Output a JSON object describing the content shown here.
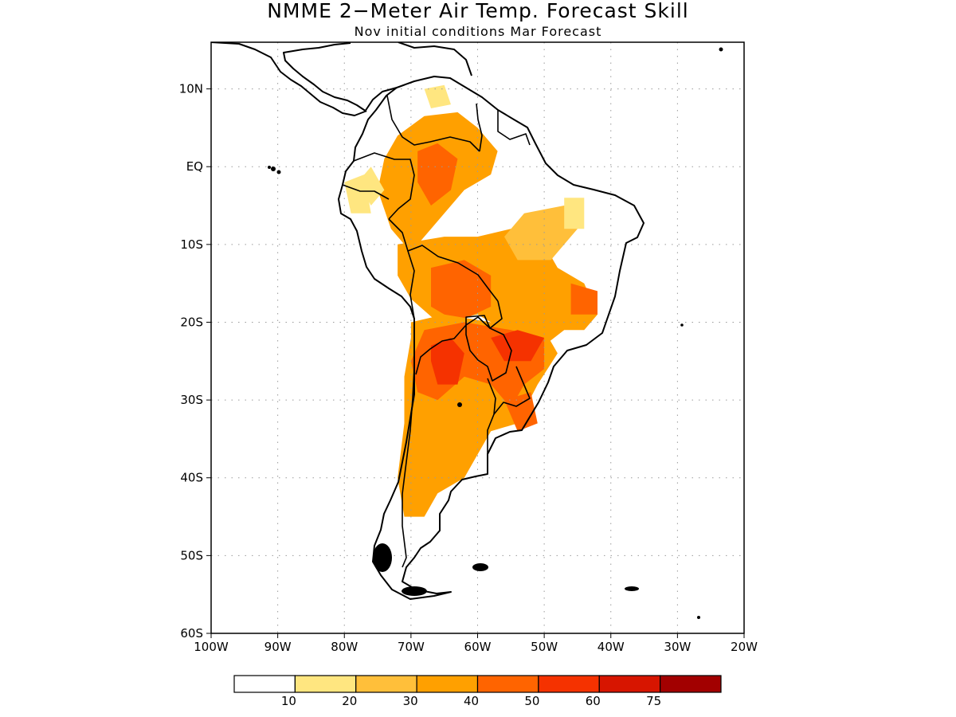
{
  "title": "NMME 2−Meter Air Temp. Forecast Skill",
  "subtitle": "Nov initial conditions  Mar Forecast",
  "map": {
    "lon_range": [
      -100,
      -20
    ],
    "lat_range": [
      -60,
      16
    ],
    "lon_ticks": [
      {
        "value": -100,
        "label": "100W"
      },
      {
        "value": -90,
        "label": "90W"
      },
      {
        "value": -80,
        "label": "80W"
      },
      {
        "value": -70,
        "label": "70W"
      },
      {
        "value": -60,
        "label": "60W"
      },
      {
        "value": -50,
        "label": "50W"
      },
      {
        "value": -40,
        "label": "40W"
      },
      {
        "value": -30,
        "label": "30W"
      },
      {
        "value": -20,
        "label": "20W"
      }
    ],
    "lat_ticks": [
      {
        "value": 10,
        "label": "10N"
      },
      {
        "value": 0,
        "label": "EQ"
      },
      {
        "value": -10,
        "label": "10S"
      },
      {
        "value": -20,
        "label": "20S"
      },
      {
        "value": -30,
        "label": "30S"
      },
      {
        "value": -40,
        "label": "40S"
      },
      {
        "value": -50,
        "label": "50S"
      },
      {
        "value": -60,
        "label": "60S"
      }
    ],
    "grid": true
  },
  "colorbar": {
    "bins": [
      {
        "color": "#ffffff"
      },
      {
        "color": "#ffe680"
      },
      {
        "color": "#ffbf3a"
      },
      {
        "color": "#ffa000"
      },
      {
        "color": "#ff6400"
      },
      {
        "color": "#f53200"
      },
      {
        "color": "#d71500"
      },
      {
        "color": "#a20000"
      }
    ],
    "labels": [
      "10",
      "20",
      "30",
      "40",
      "50",
      "60",
      "75"
    ]
  },
  "skill_regions": [
    {
      "level": 3,
      "points": [
        [
          -72,
          4
        ],
        [
          -68,
          6.5
        ],
        [
          -63,
          7
        ],
        [
          -60,
          5
        ],
        [
          -57,
          2
        ],
        [
          -58,
          -1
        ],
        [
          -62,
          -3
        ],
        [
          -66,
          -7
        ],
        [
          -70,
          -11
        ],
        [
          -73,
          -8
        ],
        [
          -75,
          -3
        ],
        [
          -74,
          1
        ]
      ]
    },
    {
      "level": 4,
      "points": [
        [
          -69,
          2
        ],
        [
          -66,
          3
        ],
        [
          -63,
          1
        ],
        [
          -64,
          -3
        ],
        [
          -67,
          -5
        ],
        [
          -69,
          -2
        ]
      ]
    },
    {
      "level": 1,
      "points": [
        [
          -78,
          -2
        ],
        [
          -76,
          0
        ],
        [
          -74,
          -3
        ],
        [
          -76,
          -5
        ]
      ]
    },
    {
      "level": 1,
      "points": [
        [
          -68,
          10
        ],
        [
          -65,
          10.5
        ],
        [
          -64,
          8
        ],
        [
          -67,
          7.5
        ]
      ]
    },
    {
      "level": 3,
      "points": [
        [
          -72,
          -10
        ],
        [
          -65,
          -9
        ],
        [
          -60,
          -9
        ],
        [
          -55,
          -8
        ],
        [
          -50,
          -10
        ],
        [
          -48,
          -13
        ],
        [
          -44,
          -15
        ],
        [
          -42,
          -19
        ],
        [
          -44,
          -21
        ],
        [
          -47,
          -21
        ],
        [
          -50,
          -23
        ],
        [
          -56,
          -21
        ],
        [
          -60,
          -19
        ],
        [
          -66,
          -20
        ],
        [
          -70,
          -17
        ],
        [
          -72,
          -14
        ]
      ]
    },
    {
      "level": 4,
      "points": [
        [
          -67,
          -13
        ],
        [
          -62,
          -12
        ],
        [
          -58,
          -14
        ],
        [
          -58,
          -18
        ],
        [
          -63,
          -20
        ],
        [
          -67,
          -18
        ]
      ]
    },
    {
      "level": 4,
      "points": [
        [
          -46,
          -15
        ],
        [
          -42,
          -16
        ],
        [
          -42,
          -19
        ],
        [
          -46,
          -19
        ]
      ]
    },
    {
      "level": 2,
      "points": [
        [
          -53,
          -6
        ],
        [
          -47,
          -5
        ],
        [
          -45,
          -8
        ],
        [
          -49,
          -12
        ],
        [
          -54,
          -12
        ],
        [
          -56,
          -9
        ]
      ]
    },
    {
      "level": 1,
      "points": [
        [
          -47,
          -4
        ],
        [
          -44,
          -4
        ],
        [
          -44,
          -8
        ],
        [
          -47,
          -8
        ]
      ]
    },
    {
      "level": 3,
      "points": [
        [
          -70,
          -20
        ],
        [
          -65,
          -19
        ],
        [
          -58,
          -20
        ],
        [
          -50,
          -21
        ],
        [
          -48,
          -24
        ],
        [
          -51,
          -28
        ],
        [
          -54,
          -33
        ],
        [
          -58,
          -34
        ],
        [
          -60,
          -37
        ],
        [
          -62,
          -40
        ],
        [
          -66,
          -42
        ],
        [
          -68,
          -45
        ],
        [
          -71,
          -45
        ],
        [
          -72,
          -40
        ],
        [
          -71,
          -33
        ],
        [
          -71,
          -27
        ],
        [
          -70,
          -22
        ]
      ]
    },
    {
      "level": 4,
      "points": [
        [
          -68,
          -21
        ],
        [
          -62,
          -20
        ],
        [
          -55,
          -21
        ],
        [
          -50,
          -22
        ],
        [
          -50,
          -26
        ],
        [
          -53,
          -28
        ],
        [
          -55,
          -31
        ],
        [
          -58,
          -28
        ],
        [
          -62,
          -27
        ],
        [
          -66,
          -30
        ],
        [
          -69,
          -29
        ],
        [
          -70,
          -25
        ]
      ]
    },
    {
      "level": 5,
      "points": [
        [
          -67,
          -23
        ],
        [
          -64,
          -22
        ],
        [
          -62,
          -24
        ],
        [
          -63,
          -28
        ],
        [
          -66,
          -28
        ],
        [
          -67,
          -25
        ]
      ]
    },
    {
      "level": 5,
      "points": [
        [
          -58,
          -22
        ],
        [
          -54,
          -21
        ],
        [
          -50,
          -22
        ],
        [
          -52,
          -25
        ],
        [
          -56,
          -25
        ]
      ]
    },
    {
      "level": 4,
      "points": [
        [
          -56,
          -30
        ],
        [
          -52,
          -29
        ],
        [
          -51,
          -33
        ],
        [
          -54,
          -34
        ]
      ]
    },
    {
      "level": 1,
      "points": [
        [
          -80,
          -2
        ],
        [
          -77,
          -1
        ],
        [
          -76,
          -6
        ],
        [
          -79,
          -6
        ]
      ]
    }
  ]
}
